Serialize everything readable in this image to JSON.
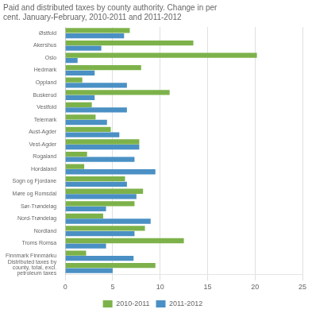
{
  "chart_data": {
    "type": "bar",
    "orientation": "horizontal",
    "title": "Paid and distributed taxes by county authority. Change in per\ncent. January-February, 2010-2011 and 2011-2012",
    "categories": [
      "Østfold",
      "Akershus",
      "Oslo",
      "Hedmark",
      "Oppland",
      "Buskerud",
      "Vestfold",
      "Telemark",
      "Aust-Agder",
      "Vest-Agder",
      "Rogaland",
      "Hordaland",
      "Sogn og Fjordane",
      "Møre og Romsdal",
      "Sør-Trøndelag",
      "Nord-Trøndelag",
      "Nordland",
      "Troms Romsa",
      "Finnmark Finnmárku",
      "Distributed taxes by\ncounty, total, excl.\npetroleum taxes"
    ],
    "series": [
      {
        "name": "2010-2011",
        "color": "#7db24a",
        "values": [
          6.8,
          13.5,
          20.2,
          8.0,
          1.8,
          11.0,
          2.8,
          3.2,
          4.8,
          7.8,
          2.3,
          2.0,
          6.3,
          8.2,
          7.3,
          4.0,
          8.4,
          12.5,
          2.2,
          9.5
        ]
      },
      {
        "name": "2011-2012",
        "color": "#4a90c4",
        "values": [
          6.2,
          3.8,
          1.3,
          3.1,
          6.5,
          3.1,
          6.5,
          4.4,
          5.7,
          7.8,
          7.3,
          9.5,
          6.5,
          7.5,
          4.3,
          9.0,
          7.3,
          4.3,
          7.2,
          5.0
        ]
      }
    ],
    "xlim": [
      0,
      25
    ],
    "xticks": [
      0,
      5,
      10,
      15,
      20,
      25
    ],
    "grid": true,
    "legend": "bottom"
  }
}
